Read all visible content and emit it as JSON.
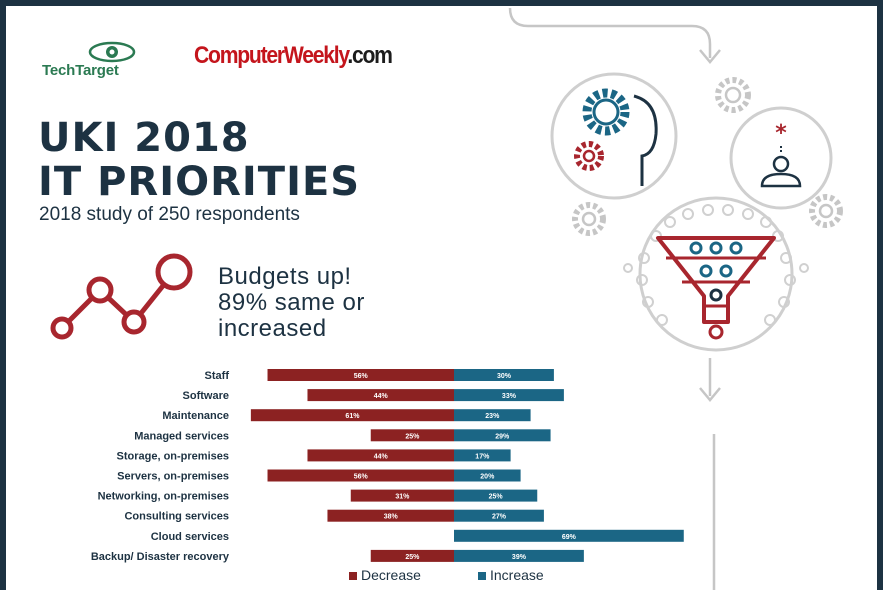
{
  "logos": {
    "techtarget": "TechTarget",
    "computerweekly_main": "ComputerWeekly",
    "computerweekly_suffix": ".com"
  },
  "title_line1": "UKI 2018",
  "title_line2": "IT PRIORITIES",
  "subtitle": "2018 study of 250 respondents",
  "headline": {
    "line1": "Budgets up!",
    "line2": "89% same or",
    "line3": "increased"
  },
  "colors": {
    "decrease": "#8c2222",
    "increase": "#1b6685",
    "navy": "#1d3242",
    "accent_red": "#a8262e",
    "gray": "#c6c6c6"
  },
  "chart_data": {
    "type": "bar",
    "orientation": "horizontal-diverging",
    "categories": [
      "Staff",
      "Software",
      "Maintenance",
      "Managed services",
      "Storage, on-premises",
      "Servers, on-premises",
      "Networking, on-premises",
      "Consulting services",
      "Cloud services",
      "Backup/ Disaster recovery"
    ],
    "series": [
      {
        "name": "Decrease",
        "values": [
          56,
          44,
          61,
          25,
          44,
          56,
          31,
          38,
          null,
          25
        ],
        "labels": [
          "56%",
          "44%",
          "61%",
          "25%",
          "44%",
          "56%",
          "31%",
          "38%",
          "",
          "25%"
        ]
      },
      {
        "name": "Increase",
        "values": [
          30,
          33,
          23,
          29,
          17,
          20,
          25,
          27,
          69,
          39
        ],
        "labels": [
          "30%",
          "33%",
          "23%",
          "29%",
          "17%",
          "20%",
          "25%",
          "27%",
          "69%",
          "39%"
        ]
      }
    ],
    "legend": [
      "Decrease",
      "Increase"
    ],
    "legend_position": "bottom",
    "unit": "%"
  }
}
